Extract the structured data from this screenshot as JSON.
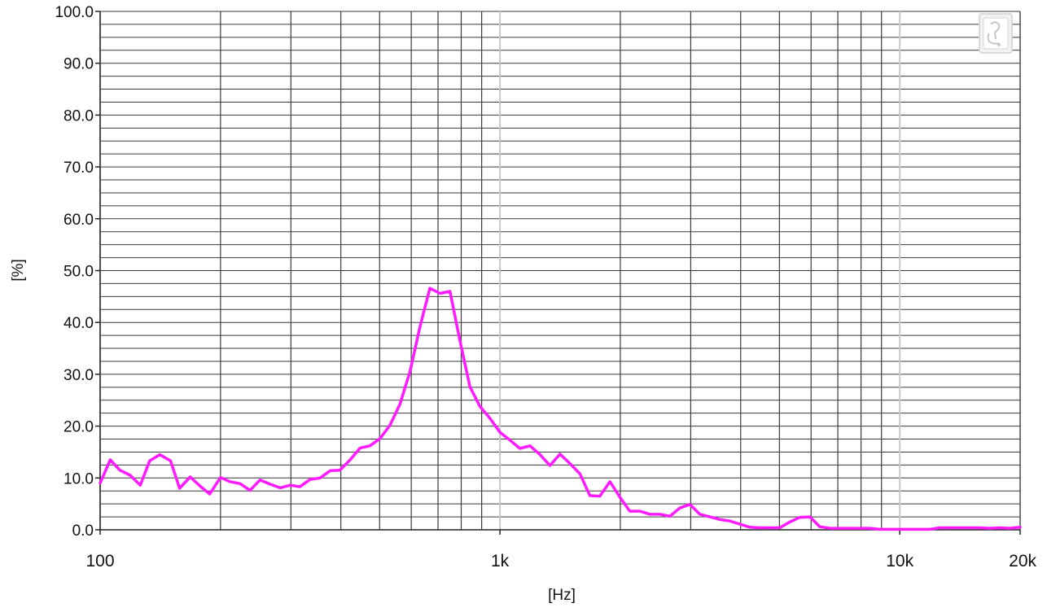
{
  "colors": {
    "background": "#ffffff",
    "grid_major": "#3a3a3a",
    "grid_minor": "#3a3a3a",
    "grid_decade": "#c8c8c8",
    "series": "#ff1aff",
    "axis": "#222222"
  },
  "icon": "export-plot-icon",
  "chart_data": {
    "type": "line",
    "title": "",
    "xlabel": "[Hz]",
    "ylabel": "[%]",
    "xscale": "log",
    "xlim": [
      100,
      20000
    ],
    "ylim": [
      0,
      100
    ],
    "grid": true,
    "y_ticks": [
      {
        "value": 0,
        "label": "0.0"
      },
      {
        "value": 10,
        "label": "10.0"
      },
      {
        "value": 20,
        "label": "20.0"
      },
      {
        "value": 30,
        "label": "30.0"
      },
      {
        "value": 40,
        "label": "40.0"
      },
      {
        "value": 50,
        "label": "50.0"
      },
      {
        "value": 60,
        "label": "60.0"
      },
      {
        "value": 70,
        "label": "70.0"
      },
      {
        "value": 80,
        "label": "80.0"
      },
      {
        "value": 90,
        "label": "90.0"
      },
      {
        "value": 100,
        "label": "100.0"
      }
    ],
    "x_ticks": [
      {
        "value": 100,
        "label": "100"
      },
      {
        "value": 1000,
        "label": "1k"
      },
      {
        "value": 10000,
        "label": "10k"
      },
      {
        "value": 20000,
        "label": "20k"
      }
    ],
    "series": [
      {
        "color": "#ff1aff",
        "x": [
          100,
          106,
          112,
          119,
          126,
          133,
          141,
          150,
          158,
          168,
          178,
          188,
          200,
          211,
          224,
          237,
          251,
          266,
          282,
          299,
          316,
          335,
          355,
          376,
          398,
          422,
          447,
          473,
          501,
          531,
          562,
          596,
          631,
          668,
          708,
          750,
          794,
          841,
          891,
          944,
          1000,
          1059,
          1122,
          1189,
          1259,
          1334,
          1413,
          1496,
          1585,
          1679,
          1778,
          1884,
          1995,
          2113,
          2239,
          2371,
          2512,
          2661,
          2818,
          2985,
          3162,
          3350,
          3548,
          3758,
          3981,
          4217,
          4467,
          4732,
          5012,
          5309,
          5623,
          5957,
          6310,
          6683,
          7079,
          7499,
          7943,
          8414,
          8913,
          9441,
          10000,
          10590,
          11220,
          11890,
          12590,
          13340,
          14130,
          14960,
          15850,
          16790,
          17780,
          18840,
          20000
        ],
        "y": [
          9.0,
          13.5,
          11.5,
          10.5,
          8.6,
          13.3,
          14.5,
          13.3,
          8.0,
          10.2,
          8.4,
          6.9,
          10.1,
          9.3,
          8.9,
          7.6,
          9.6,
          8.8,
          8.1,
          8.6,
          8.3,
          9.7,
          10.0,
          11.4,
          11.5,
          13.5,
          15.8,
          16.2,
          17.6,
          20.2,
          24.2,
          30.6,
          39.2,
          46.6,
          45.6,
          46.0,
          36.5,
          27.6,
          23.8,
          21.5,
          18.8,
          17.3,
          15.7,
          16.2,
          14.5,
          12.4,
          14.6,
          12.8,
          10.8,
          6.6,
          6.5,
          9.3,
          6.3,
          3.6,
          3.6,
          3.0,
          3.0,
          2.6,
          4.2,
          4.9,
          3.0,
          2.5,
          2.0,
          1.7,
          1.1,
          0.5,
          0.4,
          0.4,
          0.4,
          1.5,
          2.4,
          2.5,
          0.6,
          0.3,
          0.3,
          0.3,
          0.3,
          0.3,
          0.1,
          0.1,
          0.1,
          0.1,
          0.1,
          0.1,
          0.4,
          0.4,
          0.4,
          0.4,
          0.4,
          0.3,
          0.4,
          0.3,
          0.5
        ]
      }
    ]
  }
}
